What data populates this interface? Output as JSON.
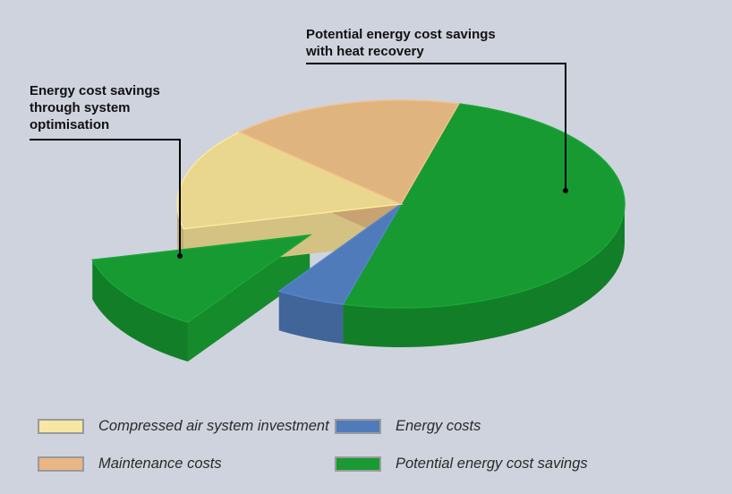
{
  "chart_data": {
    "type": "pie",
    "title": "",
    "categories": [
      "Compressed air system investment",
      "Maintenance costs",
      "Energy costs",
      "Potential energy cost savings"
    ],
    "slices": [
      {
        "label": "Potential energy cost savings",
        "value": 50,
        "color": "#179a31"
      },
      {
        "label": "Energy costs",
        "value": 5,
        "color": "#4f7bbb"
      },
      {
        "label": "Energy cost savings through system optimisation",
        "value": 12,
        "color": "#179a31",
        "exploded": true
      },
      {
        "label": "Compressed air system investment",
        "value": 16,
        "color": "#ead78f"
      },
      {
        "label": "Maintenance costs",
        "value": 17,
        "color": "#dfb47f"
      }
    ],
    "annotations": {
      "optimisation": "Energy cost savings\nthrough system\noptimisation",
      "heat_recovery": "Potential energy cost savings\nwith heat recovery"
    },
    "legend": {
      "placement": "bottom",
      "entries": [
        {
          "label": "Compressed air system investment",
          "color": "#f6e7a2"
        },
        {
          "label": "Maintenance costs",
          "color": "#eab685"
        },
        {
          "label": "Energy costs",
          "color": "#4f7bbb"
        },
        {
          "label": "Potential energy cost savings",
          "color": "#1a9a33"
        }
      ]
    }
  }
}
